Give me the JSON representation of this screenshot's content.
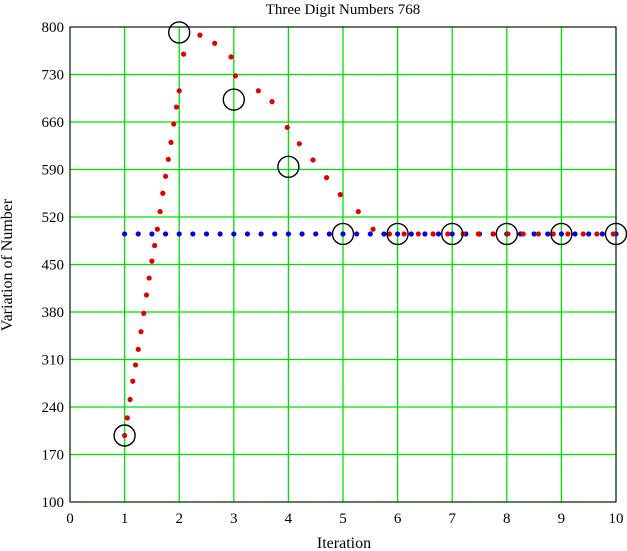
{
  "chart_data": {
    "type": "scatter",
    "title": "Three  Digit Numbers 768",
    "xlabel": "Iteration",
    "ylabel": "Variation of Number",
    "xlim": [
      0,
      10
    ],
    "ylim": [
      100,
      800
    ],
    "xticks": [
      0,
      1,
      2,
      3,
      4,
      5,
      6,
      7,
      8,
      9,
      10
    ],
    "yticks": [
      100,
      170,
      240,
      310,
      380,
      450,
      520,
      590,
      660,
      730,
      800
    ],
    "grid": true,
    "colors": {
      "grid": "#00e000",
      "path": "#e00000",
      "constant": "#0000e0",
      "circle": "#000000"
    },
    "series": [
      {
        "marker": "circle",
        "x": [
          1,
          2,
          3,
          4,
          5,
          6,
          7,
          8,
          9,
          10
        ],
        "y": [
          198,
          792,
          693,
          594,
          495,
          495,
          495,
          495,
          495,
          495
        ]
      },
      {
        "marker": "dot",
        "x": [
          1.0,
          1.05,
          1.1,
          1.15,
          1.2,
          1.25,
          1.3,
          1.35,
          1.4,
          1.45,
          1.5,
          1.55,
          1.6,
          1.65,
          1.7,
          1.75,
          1.8,
          1.85,
          1.9,
          1.95,
          2.0,
          2.08,
          2.38,
          2.65,
          2.95,
          3.03,
          3.45,
          3.7,
          3.98,
          4.2,
          4.45,
          4.7,
          4.95,
          5.28,
          5.55,
          5.85,
          6.12,
          6.38,
          6.65,
          6.92,
          7.2,
          7.48,
          7.75,
          8.02,
          8.3,
          8.58,
          8.85,
          9.12,
          9.4,
          9.65,
          9.95
        ],
        "y": [
          198,
          224,
          251,
          278,
          302,
          325,
          351,
          378,
          405,
          430,
          455,
          478,
          502,
          528,
          555,
          580,
          605,
          630,
          657,
          682,
          706,
          760,
          788,
          776,
          756,
          728,
          706,
          690,
          652,
          628,
          604,
          578,
          553,
          528,
          502,
          495,
          495,
          495,
          495,
          495,
          495,
          495,
          495,
          495,
          495,
          495,
          495,
          495,
          495,
          495,
          495
        ]
      },
      {
        "marker": "dot",
        "x": [
          1.0,
          1.25,
          1.5,
          1.75,
          2.0,
          2.25,
          2.5,
          2.75,
          3.0,
          3.25,
          3.5,
          3.75,
          4.0,
          4.25,
          4.5,
          4.75,
          5.0,
          5.25,
          5.5,
          5.75,
          6.0,
          6.25,
          6.5,
          6.75,
          7.0,
          7.25,
          7.5,
          7.75,
          8.0,
          8.25,
          8.5,
          8.75,
          9.0,
          9.25,
          9.5,
          9.75,
          10.0
        ],
        "y": [
          495,
          495,
          495,
          495,
          495,
          495,
          495,
          495,
          495,
          495,
          495,
          495,
          495,
          495,
          495,
          495,
          495,
          495,
          495,
          495,
          495,
          495,
          495,
          495,
          495,
          495,
          495,
          495,
          495,
          495,
          495,
          495,
          495,
          495,
          495,
          495,
          495
        ]
      }
    ]
  }
}
